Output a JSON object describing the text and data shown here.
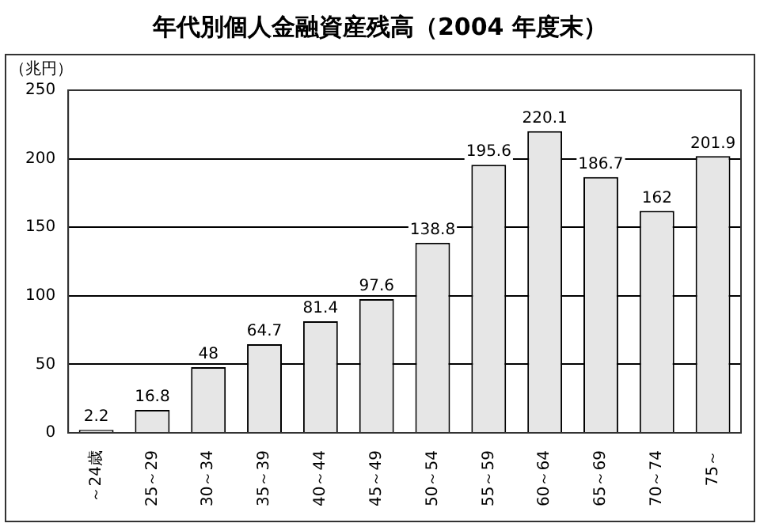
{
  "chart_data": {
    "type": "bar",
    "title": "年代別個人金融資産残高（2004 年度末）",
    "ylabel": "（兆円）",
    "categories": [
      "～24歳",
      "25～29",
      "30～34",
      "35～39",
      "40～44",
      "45～49",
      "50～54",
      "55～59",
      "60～64",
      "65～69",
      "70～74",
      "75～"
    ],
    "values": [
      2.2,
      16.8,
      48,
      64.7,
      81.4,
      97.6,
      138.8,
      195.6,
      220.1,
      186.7,
      162,
      201.9
    ],
    "color": "#e6e6e6",
    "ylim": [
      0,
      250
    ],
    "yticks": [
      0,
      50,
      100,
      150,
      200,
      250
    ],
    "grid": "y",
    "data_labels": true,
    "legend": false
  }
}
